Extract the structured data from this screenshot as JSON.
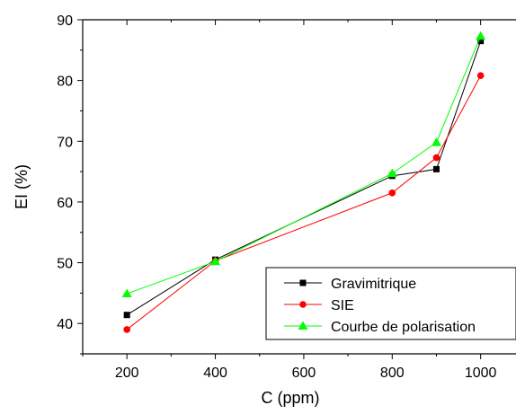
{
  "chart_data": {
    "type": "line",
    "xlabel": "C (ppm)",
    "ylabel": "EI (%)",
    "xlim": [
      100,
      1080
    ],
    "ylim": [
      35,
      90
    ],
    "x_ticks": [
      200,
      400,
      600,
      800,
      1000
    ],
    "y_ticks": [
      40,
      50,
      60,
      70,
      80,
      90
    ],
    "grid": false,
    "legend_position": "bottom-right",
    "series": [
      {
        "name": "Gravimitrique",
        "color": "#000000",
        "marker": "square",
        "x": [
          200,
          400,
          800,
          900,
          1000
        ],
        "y": [
          41.4,
          50.5,
          64.3,
          65.4,
          86.5
        ]
      },
      {
        "name": "SIE",
        "color": "#ff0000",
        "marker": "circle",
        "x": [
          200,
          400,
          800,
          900,
          1000
        ],
        "y": [
          39.0,
          50.3,
          61.5,
          67.3,
          80.8
        ]
      },
      {
        "name": "Courbe de polarisation",
        "color": "#00ff00",
        "marker": "triangle",
        "x": [
          200,
          400,
          800,
          900,
          1000
        ],
        "y": [
          44.9,
          50.2,
          64.7,
          69.8,
          87.3
        ]
      }
    ]
  }
}
